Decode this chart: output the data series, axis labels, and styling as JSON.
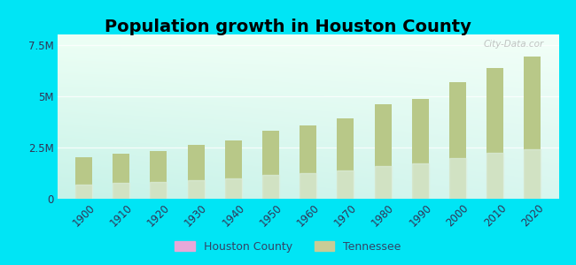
{
  "title": "Population growth in Houston County",
  "years": [
    1900,
    1910,
    1920,
    1930,
    1940,
    1950,
    1960,
    1970,
    1980,
    1990,
    2000,
    2010,
    2020
  ],
  "tennessee_values": [
    2020616,
    2184789,
    2337885,
    2616556,
    2845627,
    3291718,
    3567089,
    3926018,
    4591120,
    4877185,
    5689283,
    6346105,
    6910840
  ],
  "bar_color_top": "#b8c888",
  "bar_color_bottom": "#ddeedd",
  "houston_legend_color": "#e8a8d8",
  "tennessee_legend_color": "#c8cc96",
  "background_color": "#00e5f5",
  "plot_bg_topleft": "#e8f8f0",
  "plot_bg_topright": "#f8fff8",
  "plot_bg_bottomleft": "#c8f0e8",
  "plot_bg_bottomright": "#e0f8ee",
  "ylim": [
    0,
    8000000
  ],
  "yticks": [
    0,
    2500000,
    5000000,
    7500000
  ],
  "ytick_labels": [
    "0",
    "2.5M",
    "5M",
    "7.5M"
  ],
  "watermark": "City-Data.cor",
  "title_fontsize": 14,
  "tick_fontsize": 8.5,
  "bar_width": 4.5
}
